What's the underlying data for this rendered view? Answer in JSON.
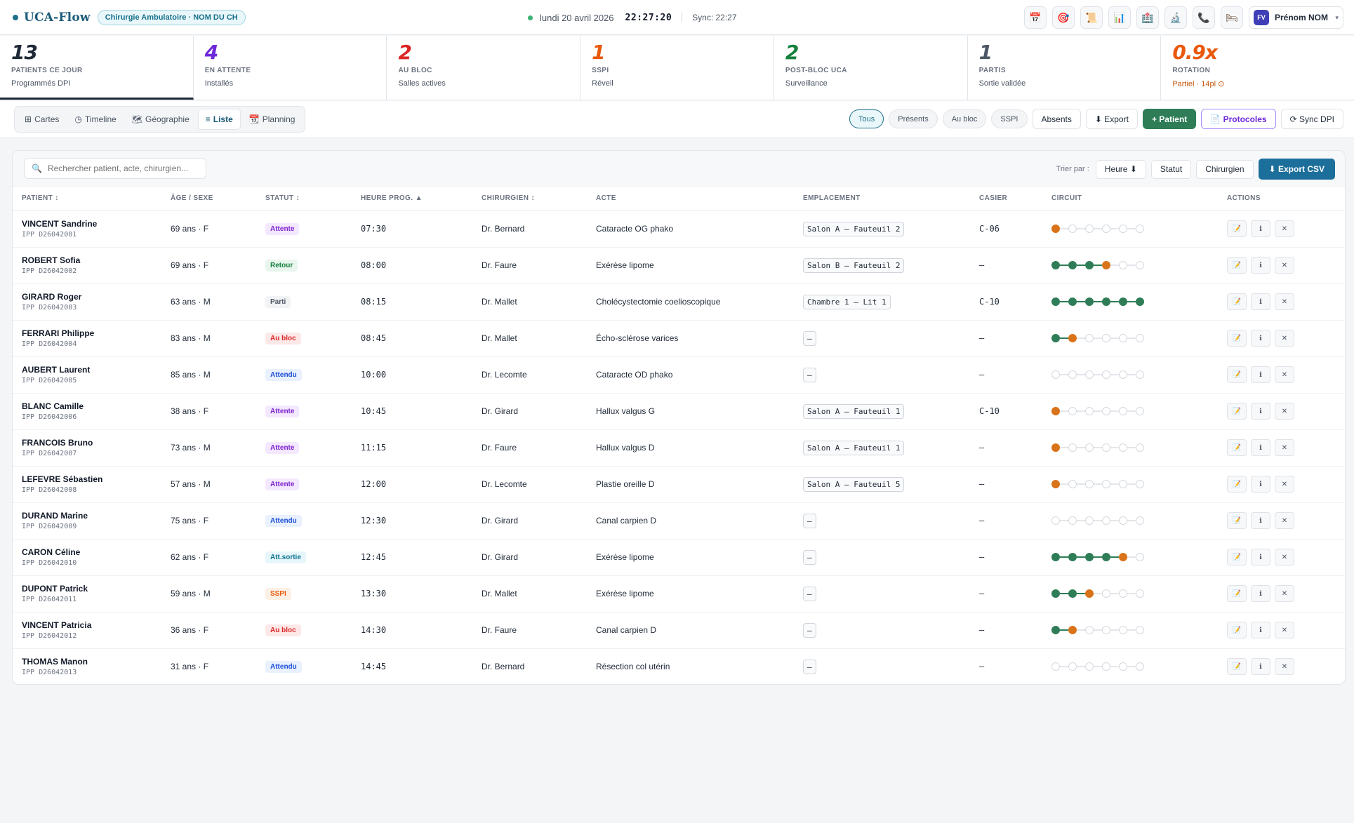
{
  "topbar": {
    "brand": "UCA-Flow",
    "unit": "Chirurgie Ambulatoire · NOM DU CH",
    "date": "lundi 20 avril 2026",
    "clock": "22:27:20",
    "sync": "Sync: 22:27",
    "icons": [
      "📅",
      "🎯",
      "📜",
      "📊",
      "🏥",
      "🔬",
      "📞",
      "🛏"
    ],
    "user_initials": "FV",
    "user_name": "Prénom NOM"
  },
  "kpis": [
    {
      "value": "13",
      "label": "PATIENTS CE JOUR",
      "sub": "Programmés DPI",
      "color": "#1f2937"
    },
    {
      "value": "4",
      "label": "EN ATTENTE",
      "sub": "Installés",
      "color": "#6d28d9"
    },
    {
      "value": "2",
      "label": "AU BLOC",
      "sub": "Salles actives",
      "color": "#dc2626"
    },
    {
      "value": "1",
      "label": "SSPI",
      "sub": "Réveil",
      "color": "#ea580c"
    },
    {
      "value": "2",
      "label": "POST-BLOC UCA",
      "sub": "Surveillance",
      "color": "#15803d"
    },
    {
      "value": "1",
      "label": "PARTIS",
      "sub": "Sortie validée",
      "color": "#4b5563"
    },
    {
      "value": "0.9x",
      "label": "ROTATION",
      "sub": "Partiel · 14pl ⊙",
      "color": "#ea580c"
    }
  ],
  "viewtabs": [
    {
      "icon": "⊞",
      "label": "Cartes"
    },
    {
      "icon": "◷",
      "label": "Timeline"
    },
    {
      "icon": "🗺",
      "label": "Géographie"
    },
    {
      "icon": "≡",
      "label": "Liste"
    },
    {
      "icon": "📆",
      "label": "Planning"
    }
  ],
  "filters": {
    "tous": "Tous",
    "presents": "Présents",
    "aubloc": "Au bloc",
    "sspi": "SSPI",
    "absents": "Absents",
    "export": "⬇ Export",
    "patient": "+ Patient",
    "protocoles": "📄 Protocoles",
    "sync": "⟳ Sync DPI"
  },
  "table_controls": {
    "search_placeholder": "Rechercher patient, acte, chirurgien...",
    "sort_label": "Trier par :",
    "sort_heure": "Heure ⬇",
    "sort_statut": "Statut",
    "sort_chirurgien": "Chirurgien",
    "export_csv": "⬇ Export CSV"
  },
  "columns": [
    "PATIENT ↕",
    "ÂGE / SEXE",
    "STATUT ↕",
    "HEURE PROG. ▲",
    "CHIRURGIEN ↕",
    "ACTE",
    "EMPLACEMENT",
    "CASIER",
    "CIRCUIT",
    "ACTIONS"
  ],
  "action_icons": [
    "📝",
    "ℹ",
    "✕"
  ],
  "status_styles": {
    "Attente": {
      "bg": "#f3e8ff",
      "fg": "#7e22ce"
    },
    "Retour": {
      "bg": "#e8f6ee",
      "fg": "#15803d"
    },
    "Parti": {
      "bg": "#f1f3f5",
      "fg": "#4b5563"
    },
    "Au bloc": {
      "bg": "#fde8e8",
      "fg": "#dc2626"
    },
    "Attendu": {
      "bg": "#e8f1fd",
      "fg": "#1d4ed8"
    },
    "Att.sortie": {
      "bg": "#e6f6fa",
      "fg": "#0e7490"
    },
    "SSPI": {
      "bg": "#fdf0e4",
      "fg": "#ea580c"
    }
  },
  "patients": [
    {
      "name": "VINCENT Sandrine",
      "ipp": "IPP D26042001",
      "age": "69 ans · F",
      "status": "Attente",
      "heure": "07:30",
      "chirurgien": "Dr. Bernard",
      "acte": "Cataracte OG phako",
      "emplacement": "Salon A – Fauteuil 2",
      "casier": "C-06",
      "circuit": [
        1,
        0,
        0,
        0,
        0,
        0
      ]
    },
    {
      "name": "ROBERT Sofia",
      "ipp": "IPP D26042002",
      "age": "69 ans · F",
      "status": "Retour",
      "heure": "08:00",
      "chirurgien": "Dr. Faure",
      "acte": "Exérèse lipome",
      "emplacement": "Salon B – Fauteuil 2",
      "casier": "–",
      "circuit": [
        2,
        2,
        2,
        1,
        0,
        0
      ]
    },
    {
      "name": "GIRARD Roger",
      "ipp": "IPP D26042003",
      "age": "63 ans · M",
      "status": "Parti",
      "heure": "08:15",
      "chirurgien": "Dr. Mallet",
      "acte": "Cholécystectomie coelioscopique",
      "emplacement": "Chambre 1 – Lit 1",
      "casier": "C-10",
      "circuit": [
        2,
        2,
        2,
        2,
        2,
        2
      ]
    },
    {
      "name": "FERRARI Philippe",
      "ipp": "IPP D26042004",
      "age": "83 ans · M",
      "status": "Au bloc",
      "heure": "08:45",
      "chirurgien": "Dr. Mallet",
      "acte": "Écho-sclérose varices",
      "emplacement": "–",
      "casier": "–",
      "circuit": [
        2,
        1,
        0,
        0,
        0,
        0
      ]
    },
    {
      "name": "AUBERT Laurent",
      "ipp": "IPP D26042005",
      "age": "85 ans · M",
      "status": "Attendu",
      "heure": "10:00",
      "chirurgien": "Dr. Lecomte",
      "acte": "Cataracte OD phako",
      "emplacement": "–",
      "casier": "–",
      "circuit": [
        0,
        0,
        0,
        0,
        0,
        0
      ]
    },
    {
      "name": "BLANC Camille",
      "ipp": "IPP D26042006",
      "age": "38 ans · F",
      "status": "Attente",
      "heure": "10:45",
      "chirurgien": "Dr. Girard",
      "acte": "Hallux valgus G",
      "emplacement": "Salon A – Fauteuil 1",
      "casier": "C-10",
      "circuit": [
        1,
        0,
        0,
        0,
        0,
        0
      ]
    },
    {
      "name": "FRANCOIS Bruno",
      "ipp": "IPP D26042007",
      "age": "73 ans · M",
      "status": "Attente",
      "heure": "11:15",
      "chirurgien": "Dr. Faure",
      "acte": "Hallux valgus D",
      "emplacement": "Salon A – Fauteuil 1",
      "casier": "–",
      "circuit": [
        1,
        0,
        0,
        0,
        0,
        0
      ]
    },
    {
      "name": "LEFEVRE Sébastien",
      "ipp": "IPP D26042008",
      "age": "57 ans · M",
      "status": "Attente",
      "heure": "12:00",
      "chirurgien": "Dr. Lecomte",
      "acte": "Plastie oreille D",
      "emplacement": "Salon A – Fauteuil 5",
      "casier": "–",
      "circuit": [
        1,
        0,
        0,
        0,
        0,
        0
      ]
    },
    {
      "name": "DURAND Marine",
      "ipp": "IPP D26042009",
      "age": "75 ans · F",
      "status": "Attendu",
      "heure": "12:30",
      "chirurgien": "Dr. Girard",
      "acte": "Canal carpien D",
      "emplacement": "–",
      "casier": "–",
      "circuit": [
        0,
        0,
        0,
        0,
        0,
        0
      ]
    },
    {
      "name": "CARON Céline",
      "ipp": "IPP D26042010",
      "age": "62 ans · F",
      "status": "Att.sortie",
      "heure": "12:45",
      "chirurgien": "Dr. Girard",
      "acte": "Exérèse lipome",
      "emplacement": "–",
      "casier": "–",
      "circuit": [
        2,
        2,
        2,
        2,
        1,
        0
      ]
    },
    {
      "name": "DUPONT Patrick",
      "ipp": "IPP D26042011",
      "age": "59 ans · M",
      "status": "SSPI",
      "heure": "13:30",
      "chirurgien": "Dr. Mallet",
      "acte": "Exérèse lipome",
      "emplacement": "–",
      "casier": "–",
      "circuit": [
        2,
        2,
        1,
        0,
        0,
        0
      ]
    },
    {
      "name": "VINCENT Patricia",
      "ipp": "IPP D26042012",
      "age": "36 ans · F",
      "status": "Au bloc",
      "heure": "14:30",
      "chirurgien": "Dr. Faure",
      "acte": "Canal carpien D",
      "emplacement": "–",
      "casier": "–",
      "circuit": [
        2,
        1,
        0,
        0,
        0,
        0
      ]
    },
    {
      "name": "THOMAS Manon",
      "ipp": "IPP D26042013",
      "age": "31 ans · F",
      "status": "Attendu",
      "heure": "14:45",
      "chirurgien": "Dr. Bernard",
      "acte": "Résection col utérin",
      "emplacement": "–",
      "casier": "–",
      "circuit": [
        0,
        0,
        0,
        0,
        0,
        0
      ]
    }
  ]
}
